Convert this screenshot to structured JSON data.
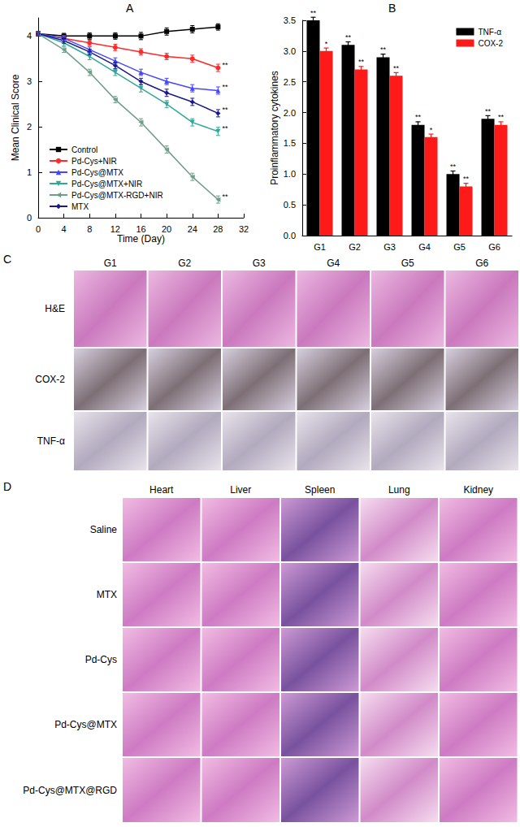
{
  "chart_data": [
    {
      "type": "line",
      "title": "A",
      "x_label": "Time (Day)",
      "y_label": "Mean Clinical Score",
      "x": [
        0,
        4,
        8,
        12,
        16,
        20,
        24,
        28
      ],
      "xlim": [
        0,
        32
      ],
      "xticks": [
        0,
        4,
        8,
        12,
        16,
        20,
        24,
        28,
        32
      ],
      "ylim": [
        0,
        4.4
      ],
      "yticks": [
        0,
        1,
        2,
        3,
        4
      ],
      "grid": false,
      "legend": "lower left",
      "series": [
        {
          "name": "Control",
          "color": "#000000",
          "marker": "square",
          "values": [
            4.05,
            4.0,
            4.0,
            4.0,
            4.0,
            4.1,
            4.15,
            4.2
          ],
          "errors": [
            0.05,
            0.06,
            0.07,
            0.07,
            0.08,
            0.08,
            0.08,
            0.07
          ],
          "significance": [
            null,
            null,
            null,
            null,
            null,
            null,
            null,
            null
          ]
        },
        {
          "name": "Pd-Cys+NIR",
          "color": "#ff2a2a",
          "marker": "circle",
          "values": [
            4.05,
            3.95,
            3.85,
            3.75,
            3.65,
            3.55,
            3.5,
            3.3
          ],
          "errors": [
            0.05,
            0.06,
            0.06,
            0.07,
            0.07,
            0.07,
            0.08,
            0.08
          ],
          "significance": [
            null,
            null,
            null,
            null,
            null,
            null,
            null,
            "**"
          ]
        },
        {
          "name": "Pd-Cys@MTX",
          "color": "#4646ff",
          "marker": "triangle",
          "values": [
            4.05,
            3.95,
            3.7,
            3.45,
            3.2,
            3.0,
            2.85,
            2.8
          ],
          "errors": [
            0.05,
            0.06,
            0.06,
            0.07,
            0.07,
            0.07,
            0.08,
            0.08
          ],
          "significance": [
            null,
            null,
            null,
            null,
            null,
            null,
            null,
            "**"
          ]
        },
        {
          "name": "Pd-Cys@MTX+NIR",
          "color": "#2fa89a",
          "marker": "triangle-down",
          "values": [
            4.05,
            3.85,
            3.55,
            3.2,
            2.85,
            2.5,
            2.1,
            1.9
          ],
          "errors": [
            0.05,
            0.06,
            0.07,
            0.07,
            0.08,
            0.08,
            0.08,
            0.09
          ],
          "significance": [
            null,
            null,
            null,
            null,
            null,
            null,
            null,
            "**"
          ]
        },
        {
          "name": "Pd-Cys@MTX-RGD+NIR",
          "color": "#6f9f8a",
          "marker": "triangle-left",
          "values": [
            4.05,
            3.7,
            3.2,
            2.6,
            2.1,
            1.5,
            0.9,
            0.4
          ],
          "errors": [
            0.05,
            0.06,
            0.07,
            0.07,
            0.08,
            0.08,
            0.08,
            0.08
          ],
          "significance": [
            null,
            null,
            null,
            null,
            null,
            null,
            null,
            "**"
          ]
        },
        {
          "name": "MTX",
          "color": "#1a1a8c",
          "marker": "diamond",
          "values": [
            4.05,
            3.9,
            3.65,
            3.35,
            3.0,
            2.75,
            2.55,
            2.3
          ],
          "errors": [
            0.05,
            0.06,
            0.06,
            0.07,
            0.07,
            0.08,
            0.08,
            0.08
          ],
          "significance": [
            null,
            null,
            null,
            null,
            null,
            null,
            null,
            "**"
          ]
        }
      ]
    },
    {
      "type": "bar",
      "title": "B",
      "y_label": "Proinflammatory cytokines",
      "categories": [
        "G1",
        "G2",
        "G3",
        "G4",
        "G5",
        "G6"
      ],
      "ylim": [
        0,
        3.5
      ],
      "yticks": [
        {
          "value": 0,
          "label": "0.0"
        },
        0.5,
        {
          "value": 1,
          "label": "1.0"
        },
        1.5,
        {
          "value": 2,
          "label": "2.0"
        },
        2.5,
        {
          "value": 3,
          "label": "3.0"
        },
        3.5
      ],
      "grid": false,
      "legend": "upper right",
      "series": [
        {
          "name": "TNF-α",
          "color": "#000000",
          "values": [
            3.5,
            3.1,
            2.9,
            1.8,
            1.0,
            1.9
          ],
          "errors": [
            0.05,
            0.05,
            0.05,
            0.05,
            0.05,
            0.05
          ],
          "significance": [
            "**",
            "**",
            "**",
            "**",
            "**",
            "**"
          ]
        },
        {
          "name": "COX-2",
          "color": "#ff1a1a",
          "values": [
            3.0,
            2.7,
            2.6,
            1.6,
            0.8,
            1.8
          ],
          "errors": [
            0.05,
            0.05,
            0.05,
            0.05,
            0.05,
            0.05
          ],
          "significance": [
            "*",
            "**",
            "**",
            "*",
            "**",
            "**"
          ]
        }
      ]
    }
  ],
  "image_panels": [
    {
      "label": "C",
      "columns": [
        "G1",
        "G2",
        "G3",
        "G4",
        "G5",
        "G6"
      ],
      "rows": [
        "H&E",
        "COX-2",
        "TNF-α"
      ]
    },
    {
      "label": "D",
      "columns": [
        "Heart",
        "Liver",
        "Spleen",
        "Lung",
        "Kidney"
      ],
      "rows": [
        "Saline",
        "MTX",
        "Pd-Cys",
        "Pd-Cys@MTX",
        "Pd-Cys@MTX@RGD"
      ]
    }
  ]
}
